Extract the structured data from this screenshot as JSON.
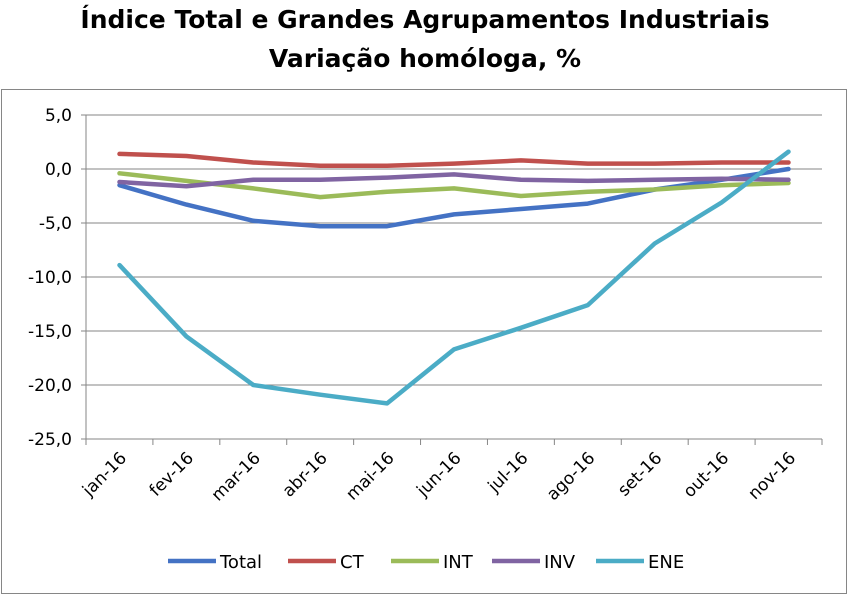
{
  "chart_data": {
    "type": "line",
    "title": "Índice Total e Grandes Agrupamentos Industriais",
    "subtitle": "Variação homóloga, %",
    "xlabel": "",
    "ylabel": "",
    "ylim": [
      -25,
      5
    ],
    "yticks": [
      5,
      0,
      -5,
      -10,
      -15,
      -20,
      -25
    ],
    "ytick_labels": [
      "5,0",
      "0,0",
      "-5,0",
      "-10,0",
      "-15,0",
      "-20,0",
      "-25,0"
    ],
    "grid": true,
    "legend": "bottom",
    "categories": [
      "jan-16",
      "fev-16",
      "mar-16",
      "abr-16",
      "mai-16",
      "jun-16",
      "jul-16",
      "ago-16",
      "set-16",
      "out-16",
      "nov-16"
    ],
    "series": [
      {
        "name": "Total",
        "color": "#4472c4",
        "values": [
          -1.5,
          -3.3,
          -4.8,
          -5.3,
          -5.3,
          -4.2,
          -3.7,
          -3.2,
          -1.9,
          -1.0,
          0.0
        ]
      },
      {
        "name": "CT",
        "color": "#c0504d",
        "values": [
          1.4,
          1.2,
          0.6,
          0.3,
          0.3,
          0.5,
          0.8,
          0.5,
          0.5,
          0.6,
          0.6
        ]
      },
      {
        "name": "INT",
        "color": "#9bbb59",
        "values": [
          -0.4,
          -1.1,
          -1.8,
          -2.6,
          -2.1,
          -1.8,
          -2.5,
          -2.1,
          -1.9,
          -1.5,
          -1.3
        ]
      },
      {
        "name": "INV",
        "color": "#8064a2",
        "values": [
          -1.2,
          -1.6,
          -1.0,
          -1.0,
          -0.8,
          -0.5,
          -1.0,
          -1.1,
          -1.0,
          -0.9,
          -1.0
        ]
      },
      {
        "name": "ENE",
        "color": "#4bacc6",
        "values": [
          -8.9,
          -15.5,
          -20.0,
          -20.9,
          -21.7,
          -16.7,
          -14.7,
          -12.6,
          -6.9,
          -3.1,
          1.6
        ]
      }
    ]
  }
}
